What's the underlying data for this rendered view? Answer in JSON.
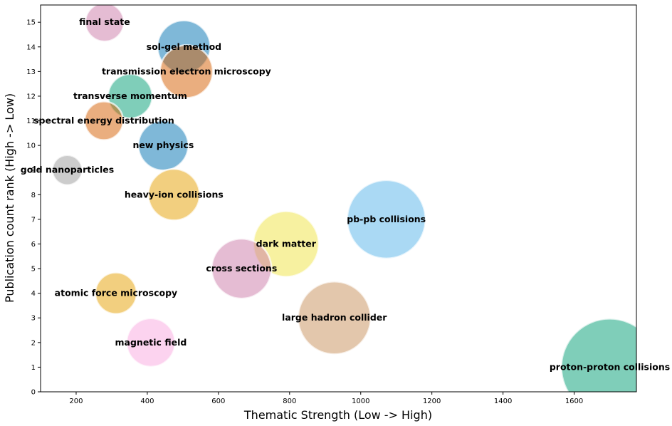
{
  "chart_data": {
    "type": "scatter",
    "title": "",
    "xlabel": "Thematic Strength (Low -> High)",
    "ylabel": "Publication count rank (High -> Low)",
    "xlim": [
      100,
      1775
    ],
    "ylim": [
      0,
      15.7
    ],
    "xticks": [
      200,
      400,
      600,
      800,
      1000,
      1200,
      1400,
      1600
    ],
    "yticks": [
      0,
      1,
      2,
      3,
      4,
      5,
      6,
      7,
      8,
      9,
      10,
      11,
      12,
      13,
      14,
      15
    ],
    "grid": false,
    "legend": "none",
    "points": [
      {
        "label": "final state",
        "x": 280,
        "y": 15,
        "r": 27,
        "color": "#cc79a7"
      },
      {
        "label": "sol-gel method",
        "x": 503,
        "y": 14,
        "r": 37,
        "color": "#0072b2"
      },
      {
        "label": "transmission electron microscopy",
        "x": 510,
        "y": 13,
        "r": 37,
        "color": "#d55e00"
      },
      {
        "label": "transverse momentum",
        "x": 352,
        "y": 12,
        "r": 31,
        "color": "#009e73"
      },
      {
        "label": "spectral energy distribution",
        "x": 278,
        "y": 11,
        "r": 27,
        "color": "#d55e00"
      },
      {
        "label": "new physics",
        "x": 445,
        "y": 10,
        "r": 35,
        "color": "#0072b2"
      },
      {
        "label": "gold nanoparticles",
        "x": 175,
        "y": 9,
        "r": 21,
        "color": "#999999"
      },
      {
        "label": "heavy-ion collisions",
        "x": 475,
        "y": 8,
        "r": 36,
        "color": "#e69f00"
      },
      {
        "label": "pb-pb collisions",
        "x": 1072,
        "y": 7,
        "r": 55,
        "color": "#56b4e9"
      },
      {
        "label": "dark matter",
        "x": 790,
        "y": 6,
        "r": 46,
        "color": "#f0e442"
      },
      {
        "label": "cross sections",
        "x": 665,
        "y": 5,
        "r": 42,
        "color": "#cc79a7"
      },
      {
        "label": "atomic force microscopy",
        "x": 312,
        "y": 4,
        "r": 29,
        "color": "#e69f00"
      },
      {
        "label": "large hadron collider",
        "x": 926,
        "y": 3,
        "r": 51,
        "color": "#c8905a"
      },
      {
        "label": "magnetic field",
        "x": 410,
        "y": 2,
        "r": 34,
        "color": "#f9a8e0"
      },
      {
        "label": "proton-proton collisions",
        "x": 1700,
        "y": 1,
        "r": 68,
        "color": "#009e73"
      }
    ]
  }
}
